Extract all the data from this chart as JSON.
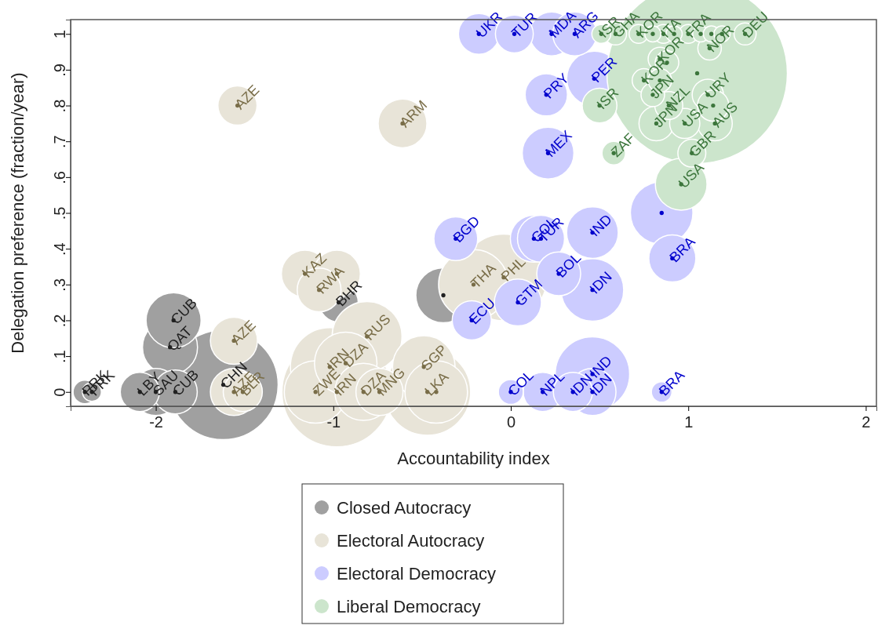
{
  "chart_data": {
    "type": "bubble",
    "xlabel": "Accountability index",
    "ylabel": "Delegation preference (fraction/year)",
    "xlim": [
      -2.48,
      2.06
    ],
    "xticks": [
      -2,
      -1,
      0,
      1,
      2
    ],
    "ylim": [
      -0.04,
      1.04
    ],
    "yticks": [
      0,
      {
        "value": 0.1,
        "label": ".1"
      },
      {
        "value": 0.2,
        "label": ".2"
      },
      {
        "value": 0.3,
        "label": ".3"
      },
      {
        "value": 0.4,
        "label": ".4"
      },
      {
        "value": 0.5,
        "label": ".5"
      },
      {
        "value": 0.6,
        "label": ".6"
      },
      {
        "value": 0.7,
        "label": ".7"
      },
      {
        "value": 0.8,
        "label": ".8"
      },
      {
        "value": 0.9,
        "label": ".9"
      },
      1
    ],
    "grid": false,
    "legend": "bottom",
    "marker": "circle",
    "series": [
      {
        "name": "Closed Autocracy",
        "color": "#a0a0a0",
        "x": [
          -2.4,
          -2.36,
          -2.09,
          -2.0,
          -1.89,
          -1.92,
          -1.9,
          -1.62,
          -0.97,
          -0.38
        ],
        "values": [
          0,
          0,
          0,
          0,
          0,
          0.125,
          0.2,
          0.02,
          0.25,
          0.27
        ],
        "sizes": [
          0.017,
          0.011,
          0.047,
          0.068,
          0.059,
          0.093,
          0.093,
          0.37,
          0.047,
          0.093
        ],
        "value_labels": [
          "PRK",
          "PRK",
          "LBY",
          "SAU",
          "CUB",
          "QAT",
          "CUB",
          "CHN",
          "BHR",
          null
        ]
      },
      {
        "name": "Electoral Autocracy",
        "color": "#e8e4d8",
        "x": [
          -1.54,
          -0.61,
          -1.56,
          -1.56,
          -1.51,
          -1.16,
          -1.08,
          -0.98,
          -1.1,
          -1.02,
          -0.93,
          -0.81,
          -0.98,
          -0.83,
          -0.74,
          -0.49,
          -0.47,
          -0.42,
          -0.21,
          -0.04
        ],
        "values": [
          0.8,
          0.75,
          0.143,
          0,
          0,
          0.33,
          0.285,
          0.33,
          0,
          0.07,
          0.08,
          0.155,
          0,
          0,
          0,
          0.07,
          0,
          0,
          0.3,
          0.32
        ],
        "sizes": [
          0.047,
          0.073,
          0.068,
          0.068,
          0.047,
          0.068,
          0.059,
          0.068,
          0.12,
          0.19,
          0.12,
          0.15,
          0.37,
          0.1,
          0.068,
          0.12,
          0.23,
          0.12,
          0.15,
          0.23
        ],
        "value_labels": [
          "AZE",
          "ARM",
          "AZE",
          "AZE",
          "BLR",
          "KAZ",
          "RWA",
          null,
          "ZWE",
          "IRN",
          "DZA",
          "RUS",
          "IRN",
          "DZA",
          "MNG",
          "SGP",
          "LKA",
          null,
          "THA",
          "PHL"
        ]
      },
      {
        "name": "Electoral Democracy",
        "color": "#ccccff",
        "x": [
          -0.18,
          0.02,
          0.23,
          0.36,
          0.2,
          0.47,
          0.21,
          -0.31,
          0.13,
          0.17,
          0.46,
          0.85,
          0.91,
          0.27,
          0.46,
          0.04,
          -0.22,
          0,
          0.18,
          0.35,
          0.46,
          0.46,
          0.85
        ],
        "values": [
          1,
          1,
          1,
          1,
          0.83,
          0.875,
          0.667,
          0.428,
          0.428,
          0.428,
          0.445,
          0.5,
          0.373,
          0.33,
          0.285,
          0.25,
          0.2,
          0,
          0,
          0,
          0,
          0.05,
          0
        ],
        "sizes": [
          0.051,
          0.044,
          0.059,
          0.059,
          0.055,
          0.093,
          0.082,
          0.059,
          0.068,
          0.068,
          0.082,
          0.12,
          0.068,
          0.059,
          0.12,
          0.068,
          0.047,
          0.019,
          0.047,
          0.047,
          0.068,
          0.17,
          0.013
        ],
        "value_labels": [
          "UKR",
          "TUR",
          "MDA",
          "ARG",
          "PRY",
          "PER",
          "MEX",
          "BGD",
          "COL",
          "TUR",
          "IND",
          null,
          "BRA",
          "BOL",
          "IDN",
          "GTM",
          "ECU",
          "COL",
          "NPL",
          "IDN",
          "IDN",
          "IND",
          "BRA"
        ]
      },
      {
        "name": "Liberal Democracy",
        "color": "#cce5cc",
        "x": [
          1.05,
          0.51,
          0.59,
          0.72,
          0.8,
          0.86,
          0.92,
          1.0,
          1.07,
          1.13,
          1.19,
          1.32,
          1.12,
          0.84,
          0.88,
          0.5,
          0.75,
          0.8,
          0.84,
          0.89,
          0.82,
          0.98,
          1.11,
          1.14,
          1.15,
          1.02,
          0.58,
          0.96
        ],
        "values": [
          0.89,
          1,
          1,
          1,
          1,
          1,
          1,
          1,
          1,
          1,
          1,
          1,
          0.96,
          0.93,
          0.92,
          0.8,
          0.87,
          0.83,
          0.87,
          0.8,
          0.75,
          0.75,
          0.83,
          0.8,
          0.75,
          0.667,
          0.667,
          0.58
        ],
        "sizes": [
          1,
          0.011,
          0.015,
          0.011,
          0.008,
          0.011,
          0.008,
          0.011,
          0.008,
          0.008,
          0.008,
          0.015,
          0.017,
          0.017,
          0.017,
          0.037,
          0.017,
          0.017,
          0.017,
          0.024,
          0.037,
          0.028,
          0.03,
          0.03,
          0.037,
          0.024,
          0.017,
          0.082
        ],
        "value_labels": [
          null,
          "ISR",
          "GHA",
          "KOR",
          null,
          "ITA",
          null,
          "FRA",
          null,
          null,
          null,
          "DEU",
          "NOR",
          "KOR",
          null,
          "ISR",
          "KOR",
          "JPN",
          null,
          "NZL",
          "JPN",
          "USA",
          "URY",
          null,
          "AUS",
          "GBR",
          "ZAF",
          "USA"
        ]
      }
    ]
  }
}
